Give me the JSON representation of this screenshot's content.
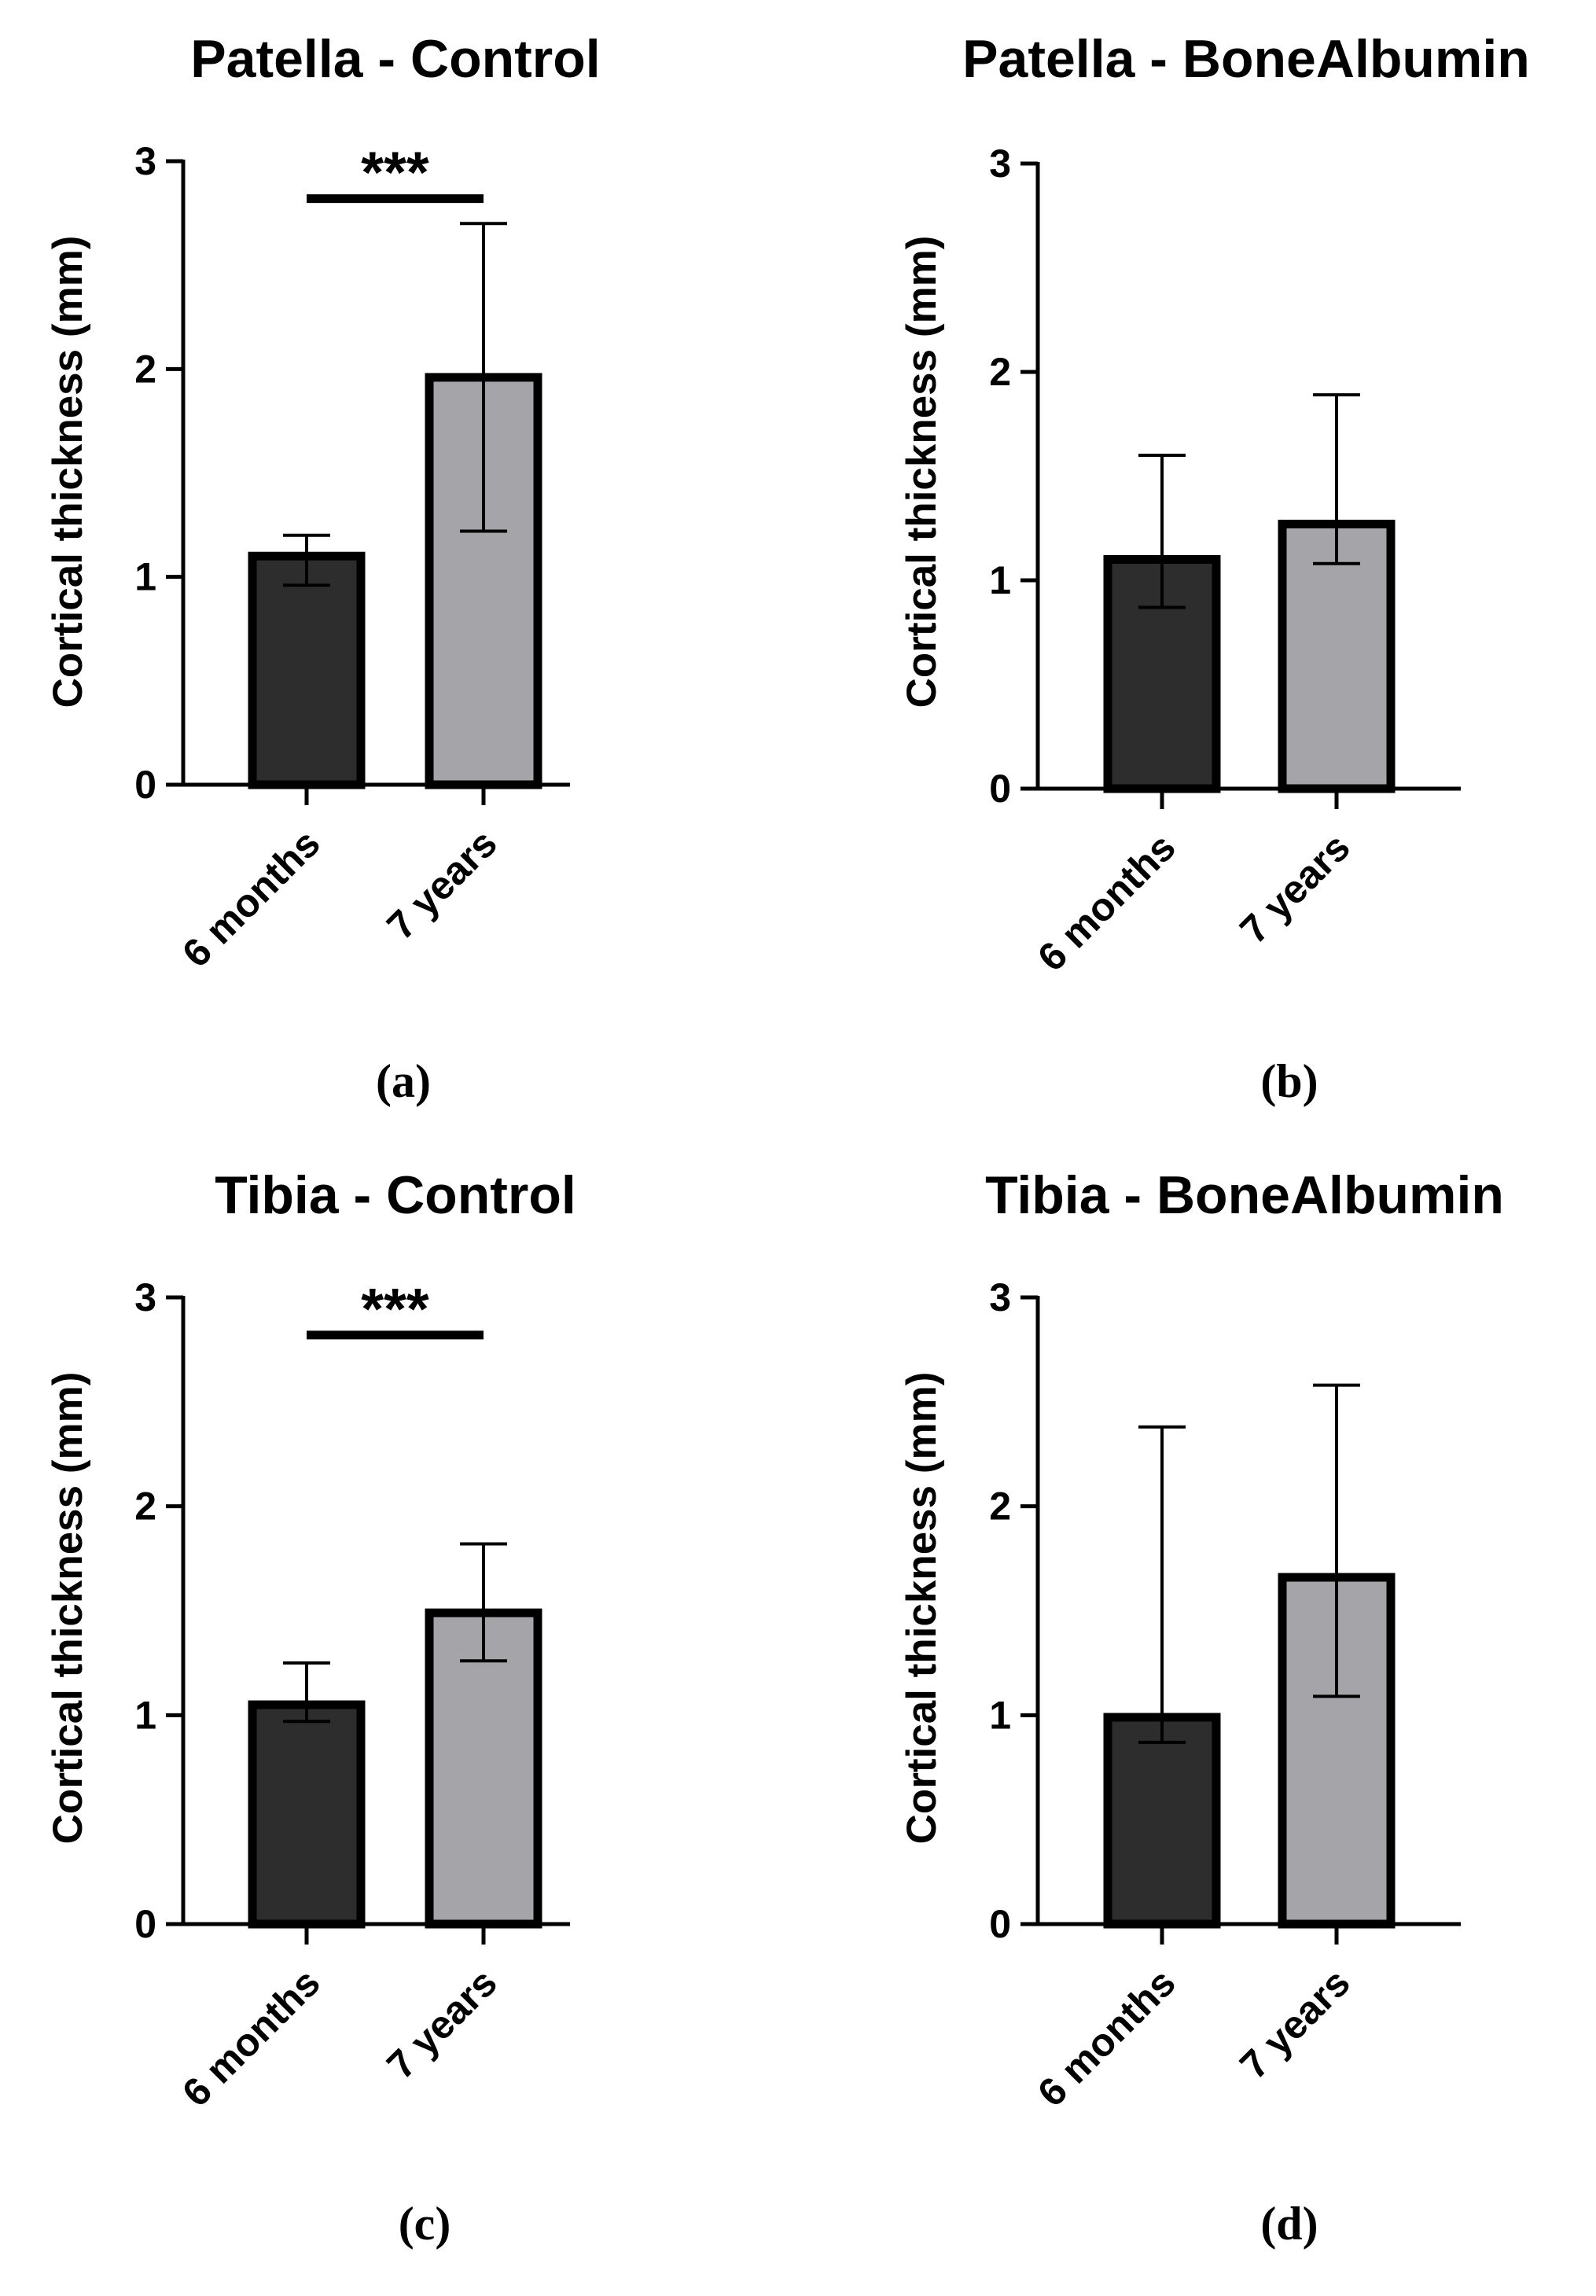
{
  "chart_data": [
    {
      "type": "bar",
      "title": "Patella - Control",
      "panel_label": "(a)",
      "ylabel": "Cortical thickness (mm)",
      "xlabel": "",
      "ylim": [
        0,
        3
      ],
      "yticks": [
        0,
        1,
        2,
        3
      ],
      "categories": [
        "6 months",
        "7 years"
      ],
      "values": [
        1.1,
        1.96
      ],
      "error_upper": [
        1.2,
        2.7
      ],
      "error_lower": [
        0.96,
        1.22
      ],
      "colors": [
        "#2d2d2d",
        "#a5a4a9"
      ],
      "significance": {
        "from": 0,
        "to": 1,
        "label": "***",
        "y": 2.82
      }
    },
    {
      "type": "bar",
      "title": "Patella - BoneAlbumin",
      "panel_label": "(b)",
      "ylabel": "Cortical thickness (mm)",
      "xlabel": "",
      "ylim": [
        0,
        3
      ],
      "yticks": [
        0,
        1,
        2,
        3
      ],
      "categories": [
        "6 months",
        "7 years"
      ],
      "values": [
        1.1,
        1.27
      ],
      "error_upper": [
        1.6,
        1.89
      ],
      "error_lower": [
        0.87,
        1.08
      ],
      "colors": [
        "#2d2d2d",
        "#a5a4a9"
      ],
      "significance": null
    },
    {
      "type": "bar",
      "title": "Tibia - Control",
      "panel_label": "(c)",
      "ylabel": "Cortical thickness (mm)",
      "xlabel": "",
      "ylim": [
        0,
        3
      ],
      "yticks": [
        0,
        1,
        2,
        3
      ],
      "categories": [
        "6 months",
        "7 years"
      ],
      "values": [
        1.05,
        1.49
      ],
      "error_upper": [
        1.25,
        1.82
      ],
      "error_lower": [
        0.97,
        1.26
      ],
      "colors": [
        "#2d2d2d",
        "#a5a4a9"
      ],
      "significance": {
        "from": 0,
        "to": 1,
        "label": "***",
        "y": 2.82
      }
    },
    {
      "type": "bar",
      "title": "Tibia - BoneAlbumin",
      "panel_label": "(d)",
      "ylabel": "Cortical thickness (mm)",
      "xlabel": "",
      "ylim": [
        0,
        3
      ],
      "yticks": [
        0,
        1,
        2,
        3
      ],
      "categories": [
        "6 months",
        "7 years"
      ],
      "values": [
        0.99,
        1.66
      ],
      "error_upper": [
        2.38,
        2.58
      ],
      "error_lower": [
        0.87,
        1.09
      ],
      "colors": [
        "#2d2d2d",
        "#a5a4a9"
      ],
      "significance": null
    }
  ]
}
